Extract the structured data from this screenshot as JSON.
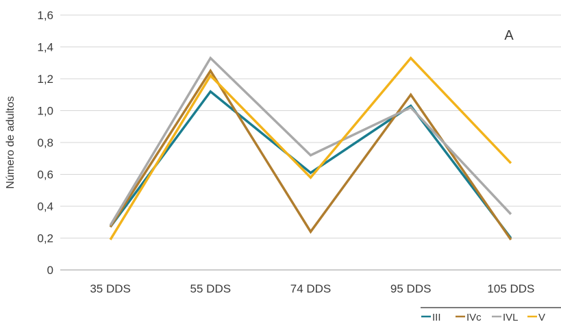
{
  "chart_data": {
    "type": "line",
    "panel_label": "A",
    "xlabel": "",
    "ylabel": "Número de adultos",
    "categories": [
      "35 DDS",
      "55 DDS",
      "74 DDS",
      "95 DDS",
      "105 DDS"
    ],
    "ylim": [
      0,
      1.6
    ],
    "yticks": [
      {
        "value": 0,
        "label": "0"
      },
      {
        "value": 0.2,
        "label": "0,2"
      },
      {
        "value": 0.4,
        "label": "0,4"
      },
      {
        "value": 0.6,
        "label": "0,6"
      },
      {
        "value": 0.8,
        "label": "0,8"
      },
      {
        "value": 1.0,
        "label": "1,0"
      },
      {
        "value": 1.2,
        "label": "1,2"
      },
      {
        "value": 1.4,
        "label": "1,4"
      },
      {
        "value": 1.6,
        "label": "1,6"
      }
    ],
    "grid": true,
    "legend_position": "bottom-right",
    "series": [
      {
        "name": "III",
        "color": "#1a7d8f",
        "values": [
          0.27,
          1.12,
          0.61,
          1.03,
          0.2
        ]
      },
      {
        "name": "IVc",
        "color": "#b07d2e",
        "values": [
          0.27,
          1.25,
          0.24,
          1.1,
          0.19
        ]
      },
      {
        "name": "IVL",
        "color": "#a9a9a9",
        "values": [
          0.28,
          1.33,
          0.72,
          1.02,
          0.35
        ]
      },
      {
        "name": "V",
        "color": "#f2b31b",
        "values": [
          0.19,
          1.22,
          0.58,
          1.33,
          0.67
        ]
      }
    ]
  }
}
